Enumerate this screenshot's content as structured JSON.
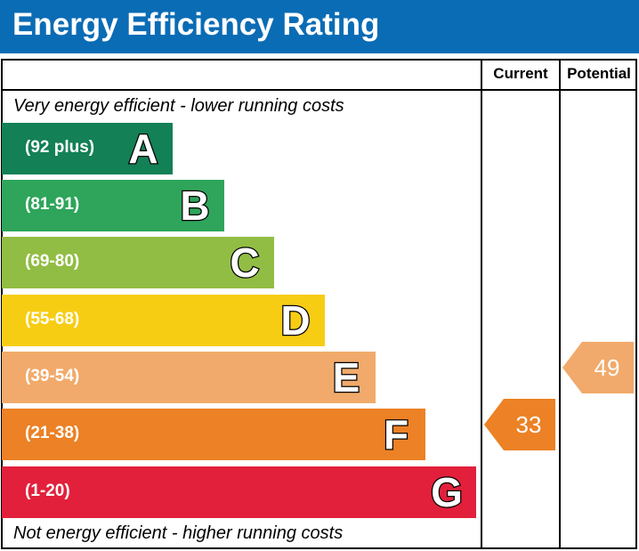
{
  "header": {
    "title": "Energy Efficiency Rating"
  },
  "columns": {
    "current": "Current",
    "potential": "Potential"
  },
  "notes": {
    "top": "Very energy efficient - lower running costs",
    "bottom": "Not energy efficient - higher running costs"
  },
  "chart_data": {
    "type": "bar",
    "title": "Energy Efficiency Rating",
    "bands": [
      {
        "letter": "A",
        "range": "(92 plus)",
        "color": "#138056"
      },
      {
        "letter": "B",
        "range": "(81-91)",
        "color": "#2ea55b"
      },
      {
        "letter": "C",
        "range": "(69-80)",
        "color": "#92bd44"
      },
      {
        "letter": "D",
        "range": "(55-68)",
        "color": "#f7cd14"
      },
      {
        "letter": "E",
        "range": "(39-54)",
        "color": "#f1aa6b"
      },
      {
        "letter": "F",
        "range": "(21-38)",
        "color": "#ec8125"
      },
      {
        "letter": "G",
        "range": "(1-20)",
        "color": "#e2203b"
      }
    ],
    "current": {
      "value": "33",
      "band": "F",
      "color": "#ec8125"
    },
    "potential": {
      "value": "49",
      "band": "E",
      "color": "#f1aa6b"
    }
  }
}
